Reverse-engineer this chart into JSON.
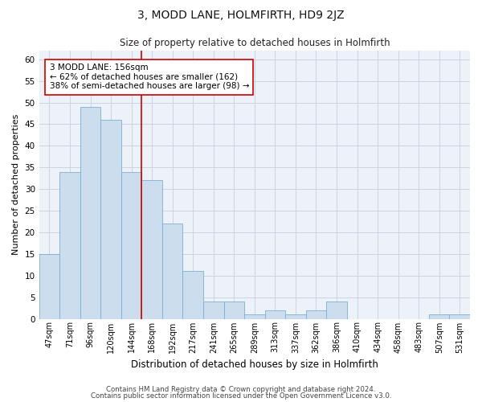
{
  "title": "3, MODD LANE, HOLMFIRTH, HD9 2JZ",
  "subtitle": "Size of property relative to detached houses in Holmfirth",
  "xlabel": "Distribution of detached houses by size in Holmfirth",
  "ylabel": "Number of detached properties",
  "categories": [
    "47sqm",
    "71sqm",
    "96sqm",
    "120sqm",
    "144sqm",
    "168sqm",
    "192sqm",
    "217sqm",
    "241sqm",
    "265sqm",
    "289sqm",
    "313sqm",
    "337sqm",
    "362sqm",
    "386sqm",
    "410sqm",
    "434sqm",
    "458sqm",
    "483sqm",
    "507sqm",
    "531sqm"
  ],
  "values": [
    15,
    34,
    49,
    46,
    34,
    32,
    22,
    11,
    4,
    4,
    1,
    2,
    1,
    2,
    4,
    0,
    0,
    0,
    0,
    1,
    1
  ],
  "bar_color": "#ccdded",
  "bar_edge_color": "#7aafd4",
  "vline_x": 4.5,
  "vline_color": "#cc0000",
  "ylim": [
    0,
    62
  ],
  "yticks": [
    0,
    5,
    10,
    15,
    20,
    25,
    30,
    35,
    40,
    45,
    50,
    55,
    60
  ],
  "annotation_text": "3 MODD LANE: 156sqm\n← 62% of detached houses are smaller (162)\n38% of semi-detached houses are larger (98) →",
  "annotation_box_color": "#ffffff",
  "annotation_box_edge_color": "#cc0000",
  "footer_line1": "Contains HM Land Registry data © Crown copyright and database right 2024.",
  "footer_line2": "Contains public sector information licensed under the Open Government Licence v3.0.",
  "grid_color": "#c8d4e4",
  "bg_color": "#edf2f9"
}
